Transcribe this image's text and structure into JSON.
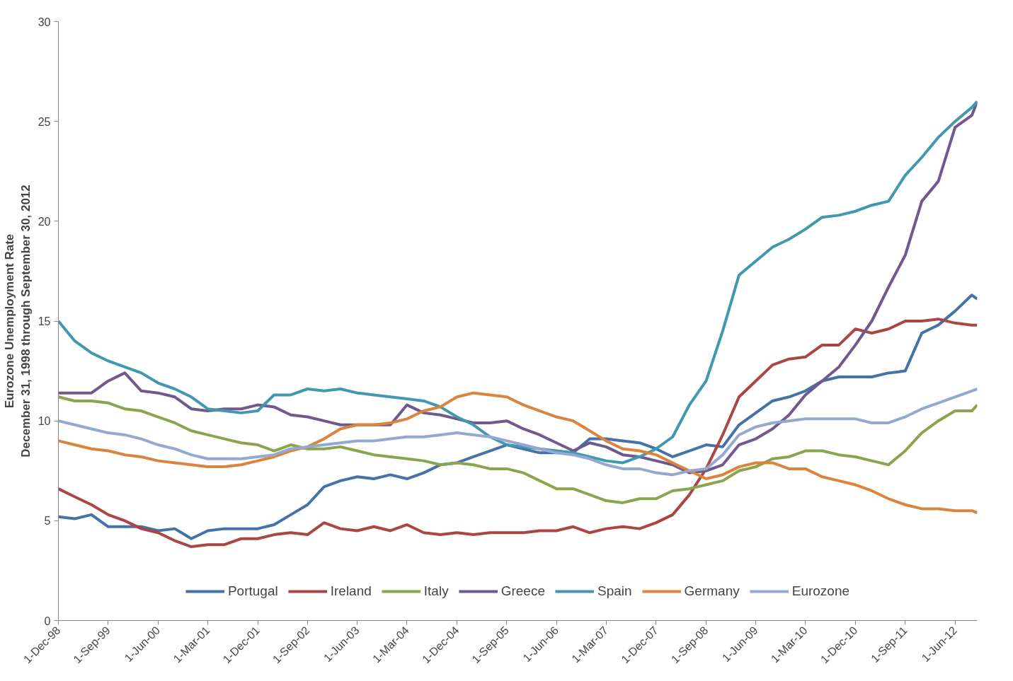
{
  "chart_data": {
    "type": "line",
    "ylabel": "Eurozone Unemployment Rate\nDecember 31, 1998 through September 30, 2012",
    "x": [
      "1998-12-01",
      "1999-03-01",
      "1999-06-01",
      "1999-09-01",
      "1999-12-01",
      "2000-03-01",
      "2000-06-01",
      "2000-09-01",
      "2000-12-01",
      "2001-03-01",
      "2001-06-01",
      "2001-09-01",
      "2001-12-01",
      "2002-03-01",
      "2002-06-01",
      "2002-09-01",
      "2002-12-01",
      "2003-03-01",
      "2003-06-01",
      "2003-09-01",
      "2003-12-01",
      "2004-03-01",
      "2004-06-01",
      "2004-09-01",
      "2004-12-01",
      "2005-03-01",
      "2005-06-01",
      "2005-09-01",
      "2005-12-01",
      "2006-03-01",
      "2006-06-01",
      "2006-09-01",
      "2006-12-01",
      "2007-03-01",
      "2007-06-01",
      "2007-09-01",
      "2007-12-01",
      "2008-03-01",
      "2008-06-01",
      "2008-09-01",
      "2008-12-01",
      "2009-03-01",
      "2009-06-01",
      "2009-09-01",
      "2009-12-01",
      "2010-03-01",
      "2010-06-01",
      "2010-09-01",
      "2010-12-01",
      "2011-03-01",
      "2011-06-01",
      "2011-09-01",
      "2011-12-01",
      "2012-03-01",
      "2012-06-01",
      "2012-09-01",
      "2012-10-01"
    ],
    "series": [
      {
        "name": "Portugal",
        "color": "#4572a7",
        "values": [
          5.2,
          5.1,
          5.3,
          4.7,
          4.7,
          4.7,
          4.5,
          4.6,
          4.1,
          4.5,
          4.6,
          4.6,
          4.6,
          4.8,
          5.3,
          5.8,
          6.7,
          7.0,
          7.2,
          7.1,
          7.3,
          7.1,
          7.4,
          7.8,
          7.9,
          8.2,
          8.5,
          8.8,
          8.6,
          8.4,
          8.4,
          8.4,
          9.1,
          9.1,
          9.0,
          8.9,
          8.6,
          8.2,
          8.5,
          8.8,
          8.7,
          9.8,
          10.4,
          11.0,
          11.2,
          11.5,
          12.0,
          12.2,
          12.2,
          12.2,
          12.4,
          12.5,
          14.4,
          14.8,
          15.5,
          16.3,
          16.1
        ]
      },
      {
        "name": "Ireland",
        "color": "#aa4643",
        "values": [
          6.6,
          6.2,
          5.8,
          5.3,
          5.0,
          4.6,
          4.4,
          4.0,
          3.7,
          3.8,
          3.8,
          4.1,
          4.1,
          4.3,
          4.4,
          4.3,
          4.9,
          4.6,
          4.5,
          4.7,
          4.5,
          4.8,
          4.4,
          4.3,
          4.4,
          4.3,
          4.4,
          4.4,
          4.4,
          4.5,
          4.5,
          4.7,
          4.4,
          4.6,
          4.7,
          4.6,
          4.9,
          5.3,
          6.3,
          7.6,
          9.3,
          11.2,
          12.0,
          12.8,
          13.1,
          13.2,
          13.8,
          13.8,
          14.6,
          14.4,
          14.6,
          15.0,
          15.0,
          15.1,
          14.9,
          14.8,
          14.8
        ]
      },
      {
        "name": "Italy",
        "color": "#89a54e",
        "values": [
          11.2,
          11.0,
          11.0,
          10.9,
          10.6,
          10.5,
          10.2,
          9.9,
          9.5,
          9.3,
          9.1,
          8.9,
          8.8,
          8.5,
          8.8,
          8.6,
          8.6,
          8.7,
          8.5,
          8.3,
          8.2,
          8.1,
          8.0,
          7.8,
          7.9,
          7.8,
          7.6,
          7.6,
          7.4,
          7.0,
          6.6,
          6.6,
          6.3,
          6.0,
          5.9,
          6.1,
          6.1,
          6.5,
          6.6,
          6.8,
          7.0,
          7.5,
          7.7,
          8.1,
          8.2,
          8.5,
          8.5,
          8.3,
          8.2,
          8.0,
          7.8,
          8.5,
          9.4,
          10.0,
          10.5,
          10.5,
          10.8
        ]
      },
      {
        "name": "Greece",
        "color": "#71588f",
        "values": [
          11.4,
          11.4,
          11.4,
          12.0,
          12.4,
          11.5,
          11.4,
          11.2,
          10.6,
          10.5,
          10.6,
          10.6,
          10.8,
          10.7,
          10.3,
          10.2,
          10.0,
          9.8,
          9.8,
          9.8,
          9.8,
          10.8,
          10.4,
          10.3,
          10.1,
          9.9,
          9.9,
          10.0,
          9.6,
          9.3,
          8.9,
          8.5,
          8.9,
          8.7,
          8.3,
          8.2,
          8.0,
          7.8,
          7.4,
          7.5,
          7.8,
          8.8,
          9.1,
          9.6,
          10.3,
          11.3,
          12.0,
          12.7,
          13.8,
          15.0,
          16.7,
          18.3,
          21.0,
          22.0,
          24.7,
          25.3,
          26.0
        ]
      },
      {
        "name": "Spain",
        "color": "#4198af",
        "values": [
          15.0,
          14.0,
          13.4,
          13.0,
          12.7,
          12.4,
          11.9,
          11.6,
          11.2,
          10.6,
          10.5,
          10.4,
          10.5,
          11.3,
          11.3,
          11.6,
          11.5,
          11.6,
          11.4,
          11.3,
          11.2,
          11.1,
          11.0,
          10.7,
          10.2,
          9.8,
          9.2,
          8.8,
          8.7,
          8.6,
          8.5,
          8.4,
          8.2,
          8.0,
          7.9,
          8.2,
          8.6,
          9.2,
          10.8,
          12.0,
          14.5,
          17.3,
          18.0,
          18.7,
          19.1,
          19.6,
          20.2,
          20.3,
          20.5,
          20.8,
          21.0,
          22.3,
          23.2,
          24.2,
          25.0,
          25.7,
          26.0
        ]
      },
      {
        "name": "Germany",
        "color": "#db843d",
        "values": [
          9.0,
          8.8,
          8.6,
          8.5,
          8.3,
          8.2,
          8.0,
          7.9,
          7.8,
          7.7,
          7.7,
          7.8,
          8.0,
          8.2,
          8.5,
          8.7,
          9.1,
          9.6,
          9.8,
          9.8,
          9.9,
          10.1,
          10.5,
          10.7,
          11.2,
          11.4,
          11.3,
          11.2,
          10.8,
          10.5,
          10.2,
          10.0,
          9.5,
          9.0,
          8.6,
          8.5,
          8.3,
          7.9,
          7.5,
          7.1,
          7.3,
          7.7,
          7.9,
          7.9,
          7.6,
          7.6,
          7.2,
          7.0,
          6.8,
          6.5,
          6.1,
          5.8,
          5.6,
          5.6,
          5.5,
          5.5,
          5.4
        ]
      },
      {
        "name": "Eurozone",
        "color": "#93a9cf",
        "values": [
          10.0,
          9.8,
          9.6,
          9.4,
          9.3,
          9.1,
          8.8,
          8.6,
          8.3,
          8.1,
          8.1,
          8.1,
          8.2,
          8.3,
          8.6,
          8.7,
          8.8,
          8.9,
          9.0,
          9.0,
          9.1,
          9.2,
          9.2,
          9.3,
          9.4,
          9.3,
          9.2,
          9.0,
          8.8,
          8.6,
          8.4,
          8.3,
          8.1,
          7.8,
          7.6,
          7.6,
          7.4,
          7.3,
          7.5,
          7.6,
          8.3,
          9.3,
          9.7,
          9.9,
          10.0,
          10.1,
          10.1,
          10.1,
          10.1,
          9.9,
          9.9,
          10.2,
          10.6,
          10.9,
          11.2,
          11.5,
          11.6
        ]
      }
    ],
    "xlim": [
      "1998-12-01",
      "2012-10-01"
    ],
    "xticks": [
      {
        "value": "1998-12-01",
        "label": "1-Dec-98"
      },
      {
        "value": "1999-09-01",
        "label": "1-Sep-99"
      },
      {
        "value": "2000-06-01",
        "label": "1-Jun-00"
      },
      {
        "value": "2001-03-01",
        "label": "1-Mar-01"
      },
      {
        "value": "2001-12-01",
        "label": "1-Dec-01"
      },
      {
        "value": "2002-09-01",
        "label": "1-Sep-02"
      },
      {
        "value": "2003-06-01",
        "label": "1-Jun-03"
      },
      {
        "value": "2004-03-01",
        "label": "1-Mar-04"
      },
      {
        "value": "2004-12-01",
        "label": "1-Dec-04"
      },
      {
        "value": "2005-09-01",
        "label": "1-Sep-05"
      },
      {
        "value": "2006-06-01",
        "label": "1-Jun-06"
      },
      {
        "value": "2007-03-01",
        "label": "1-Mar-07"
      },
      {
        "value": "2007-12-01",
        "label": "1-Dec-07"
      },
      {
        "value": "2008-09-01",
        "label": "1-Sep-08"
      },
      {
        "value": "2009-06-01",
        "label": "1-Jun-09"
      },
      {
        "value": "2010-03-01",
        "label": "1-Mar-10"
      },
      {
        "value": "2010-12-01",
        "label": "1-Dec-10"
      },
      {
        "value": "2011-09-01",
        "label": "1-Sep-11"
      },
      {
        "value": "2012-06-01",
        "label": "1-Jun-12"
      }
    ],
    "ylim": [
      0,
      30
    ],
    "yticks": [
      0,
      5,
      10,
      15,
      20,
      25,
      30
    ],
    "grid": false,
    "legend": "bottom",
    "marker": "none",
    "line_style": "solid"
  }
}
